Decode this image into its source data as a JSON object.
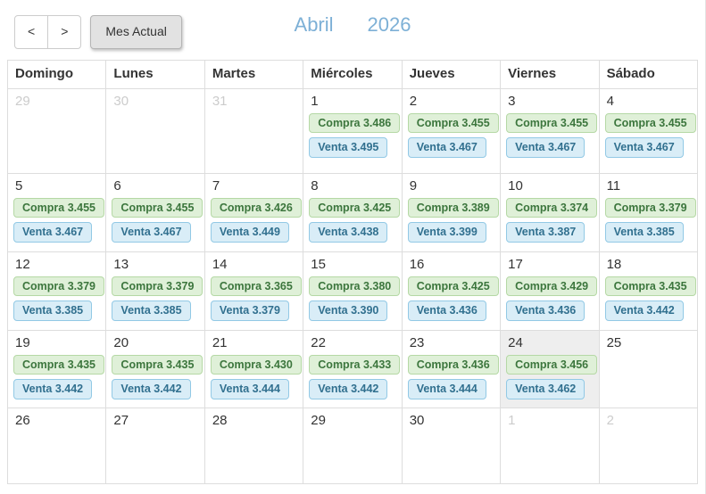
{
  "toolbar": {
    "prev_label": "<",
    "next_label": ">",
    "current_month_label": "Mes Actual",
    "month": "Abril",
    "year": "2026"
  },
  "calendar": {
    "day_headers": [
      "Domingo",
      "Lunes",
      "Martes",
      "Miércoles",
      "Jueves",
      "Viernes",
      "Sábado"
    ],
    "compra_prefix": "Compra",
    "venta_prefix": "Venta",
    "weeks": [
      [
        {
          "day": "29",
          "other": true
        },
        {
          "day": "30",
          "other": true
        },
        {
          "day": "31",
          "other": true
        },
        {
          "day": "1",
          "compra": "3.486",
          "venta": "3.495"
        },
        {
          "day": "2",
          "compra": "3.455",
          "venta": "3.467"
        },
        {
          "day": "3",
          "compra": "3.455",
          "venta": "3.467"
        },
        {
          "day": "4",
          "compra": "3.455",
          "venta": "3.467"
        }
      ],
      [
        {
          "day": "5",
          "compra": "3.455",
          "venta": "3.467"
        },
        {
          "day": "6",
          "compra": "3.455",
          "venta": "3.467"
        },
        {
          "day": "7",
          "compra": "3.426",
          "venta": "3.449"
        },
        {
          "day": "8",
          "compra": "3.425",
          "venta": "3.438"
        },
        {
          "day": "9",
          "compra": "3.389",
          "venta": "3.399"
        },
        {
          "day": "10",
          "compra": "3.374",
          "venta": "3.387"
        },
        {
          "day": "11",
          "compra": "3.379",
          "venta": "3.385"
        }
      ],
      [
        {
          "day": "12",
          "compra": "3.379",
          "venta": "3.385"
        },
        {
          "day": "13",
          "compra": "3.379",
          "venta": "3.385"
        },
        {
          "day": "14",
          "compra": "3.365",
          "venta": "3.379"
        },
        {
          "day": "15",
          "compra": "3.380",
          "venta": "3.390"
        },
        {
          "day": "16",
          "compra": "3.425",
          "venta": "3.436"
        },
        {
          "day": "17",
          "compra": "3.429",
          "venta": "3.436"
        },
        {
          "day": "18",
          "compra": "3.435",
          "venta": "3.442"
        }
      ],
      [
        {
          "day": "19",
          "compra": "3.435",
          "venta": "3.442"
        },
        {
          "day": "20",
          "compra": "3.435",
          "venta": "3.442"
        },
        {
          "day": "21",
          "compra": "3.430",
          "venta": "3.444"
        },
        {
          "day": "22",
          "compra": "3.433",
          "venta": "3.442"
        },
        {
          "day": "23",
          "compra": "3.436",
          "venta": "3.444"
        },
        {
          "day": "24",
          "compra": "3.456",
          "venta": "3.462",
          "today": true
        },
        {
          "day": "25"
        }
      ],
      [
        {
          "day": "26"
        },
        {
          "day": "27"
        },
        {
          "day": "28"
        },
        {
          "day": "29"
        },
        {
          "day": "30"
        },
        {
          "day": "1",
          "other": true
        },
        {
          "day": "2",
          "other": true
        }
      ]
    ]
  },
  "colors": {
    "border": "#dddddd",
    "title": "#7db0d6",
    "today_bg": "#eeeeee",
    "muted": "#cccccc",
    "compra_bg": "#dff0d8",
    "compra_border": "#b5d8a5",
    "compra_text": "#3c763d",
    "venta_bg": "#d9edf7",
    "venta_border": "#92c9e5",
    "venta_text": "#31708f"
  }
}
